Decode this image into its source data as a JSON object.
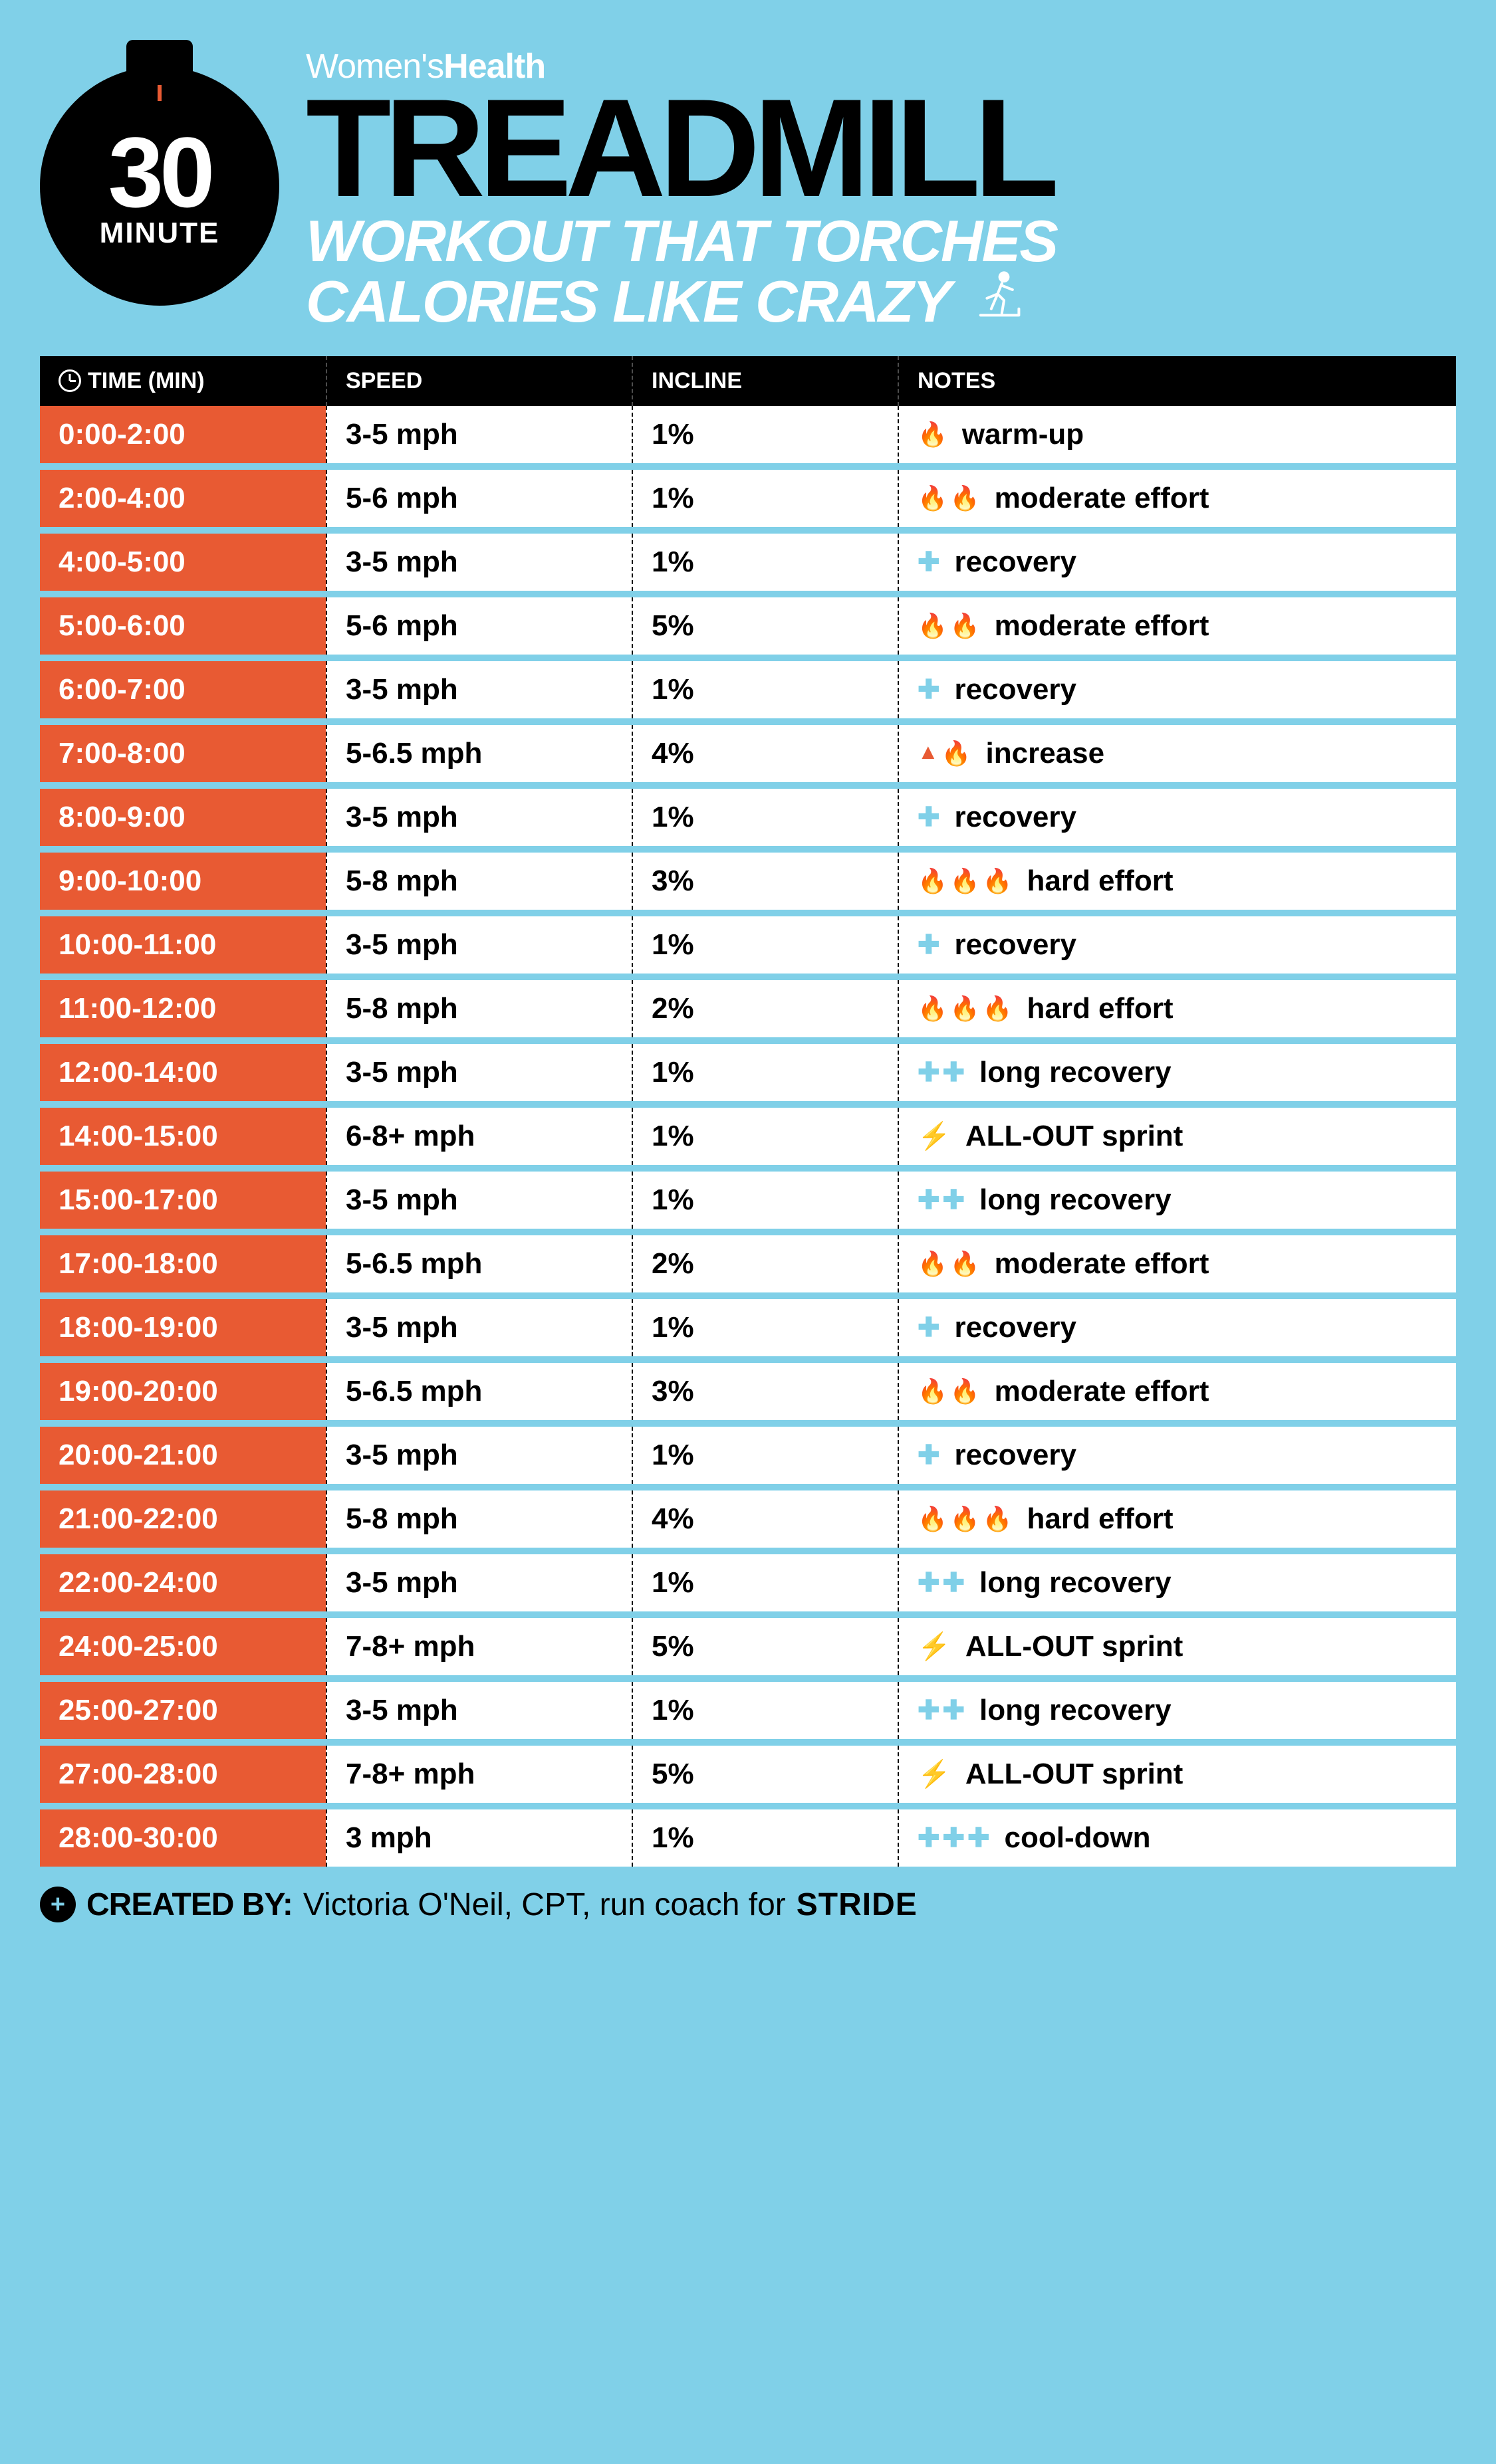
{
  "colors": {
    "background": "#80d0e8",
    "black": "#000000",
    "white": "#ffffff",
    "orange": "#e85a33",
    "yellow": "#f7b500"
  },
  "stopwatch": {
    "number": "30",
    "unit": "MINUTE"
  },
  "brand": {
    "prefix": "Women's",
    "suffix": "Health"
  },
  "title": "TREADMILL",
  "subtitle_line1": "WORKOUT THAT TORCHES",
  "subtitle_line2": "CALORIES LIKE CRAZY",
  "columns": {
    "time": "TIME (MIN)",
    "speed": "SPEED",
    "incline": "INCLINE",
    "notes": "NOTES"
  },
  "rows": [
    {
      "time": "0:00-2:00",
      "speed": "3-5 mph",
      "incline": "1%",
      "icons": [
        "flame"
      ],
      "note": "warm-up"
    },
    {
      "time": "2:00-4:00",
      "speed": "5-6 mph",
      "incline": "1%",
      "icons": [
        "flame",
        "flame"
      ],
      "note": "moderate effort"
    },
    {
      "time": "4:00-5:00",
      "speed": "3-5 mph",
      "incline": "1%",
      "icons": [
        "plus"
      ],
      "note": "recovery"
    },
    {
      "time": "5:00-6:00",
      "speed": "5-6 mph",
      "incline": "5%",
      "icons": [
        "flame",
        "flame"
      ],
      "note": "moderate effort"
    },
    {
      "time": "6:00-7:00",
      "speed": "3-5 mph",
      "incline": "1%",
      "icons": [
        "plus"
      ],
      "note": "recovery"
    },
    {
      "time": "7:00-8:00",
      "speed": "5-6.5 mph",
      "incline": "4%",
      "icons": [
        "up",
        "flame"
      ],
      "note": "increase"
    },
    {
      "time": "8:00-9:00",
      "speed": "3-5 mph",
      "incline": "1%",
      "icons": [
        "plus"
      ],
      "note": "recovery"
    },
    {
      "time": "9:00-10:00",
      "speed": "5-8 mph",
      "incline": "3%",
      "icons": [
        "flame",
        "flame",
        "flame"
      ],
      "note": "hard effort"
    },
    {
      "time": "10:00-11:00",
      "speed": "3-5 mph",
      "incline": "1%",
      "icons": [
        "plus"
      ],
      "note": "recovery"
    },
    {
      "time": "11:00-12:00",
      "speed": "5-8 mph",
      "incline": "2%",
      "icons": [
        "flame",
        "flame",
        "flame"
      ],
      "note": "hard effort"
    },
    {
      "time": "12:00-14:00",
      "speed": "3-5 mph",
      "incline": "1%",
      "icons": [
        "plus",
        "plus"
      ],
      "note": "long recovery"
    },
    {
      "time": "14:00-15:00",
      "speed": "6-8+ mph",
      "incline": "1%",
      "icons": [
        "bolt"
      ],
      "note": "ALL-OUT sprint"
    },
    {
      "time": "15:00-17:00",
      "speed": "3-5 mph",
      "incline": "1%",
      "icons": [
        "plus",
        "plus"
      ],
      "note": "long recovery"
    },
    {
      "time": "17:00-18:00",
      "speed": "5-6.5 mph",
      "incline": "2%",
      "icons": [
        "flame",
        "flame"
      ],
      "note": "moderate effort"
    },
    {
      "time": "18:00-19:00",
      "speed": "3-5 mph",
      "incline": "1%",
      "icons": [
        "plus"
      ],
      "note": "recovery"
    },
    {
      "time": "19:00-20:00",
      "speed": "5-6.5 mph",
      "incline": "3%",
      "icons": [
        "flame",
        "flame"
      ],
      "note": "moderate effort"
    },
    {
      "time": "20:00-21:00",
      "speed": "3-5 mph",
      "incline": "1%",
      "icons": [
        "plus"
      ],
      "note": "recovery"
    },
    {
      "time": "21:00-22:00",
      "speed": "5-8 mph",
      "incline": "4%",
      "icons": [
        "flame",
        "flame",
        "flame"
      ],
      "note": "hard effort"
    },
    {
      "time": "22:00-24:00",
      "speed": "3-5 mph",
      "incline": "1%",
      "icons": [
        "plus",
        "plus"
      ],
      "note": "long recovery"
    },
    {
      "time": "24:00-25:00",
      "speed": "7-8+ mph",
      "incline": "5%",
      "icons": [
        "bolt"
      ],
      "note": "ALL-OUT sprint"
    },
    {
      "time": "25:00-27:00",
      "speed": "3-5 mph",
      "incline": "1%",
      "icons": [
        "plus",
        "plus"
      ],
      "note": "long recovery"
    },
    {
      "time": "27:00-28:00",
      "speed": "7-8+ mph",
      "incline": "5%",
      "icons": [
        "bolt"
      ],
      "note": "ALL-OUT sprint"
    },
    {
      "time": "28:00-30:00",
      "speed": "3 mph",
      "incline": "1%",
      "icons": [
        "plus",
        "plus",
        "plus"
      ],
      "note": "cool-down"
    }
  ],
  "footer": {
    "label": "CREATED BY:",
    "text": "Victoria O'Neil, CPT, run coach for",
    "stride": "STRIDE"
  }
}
